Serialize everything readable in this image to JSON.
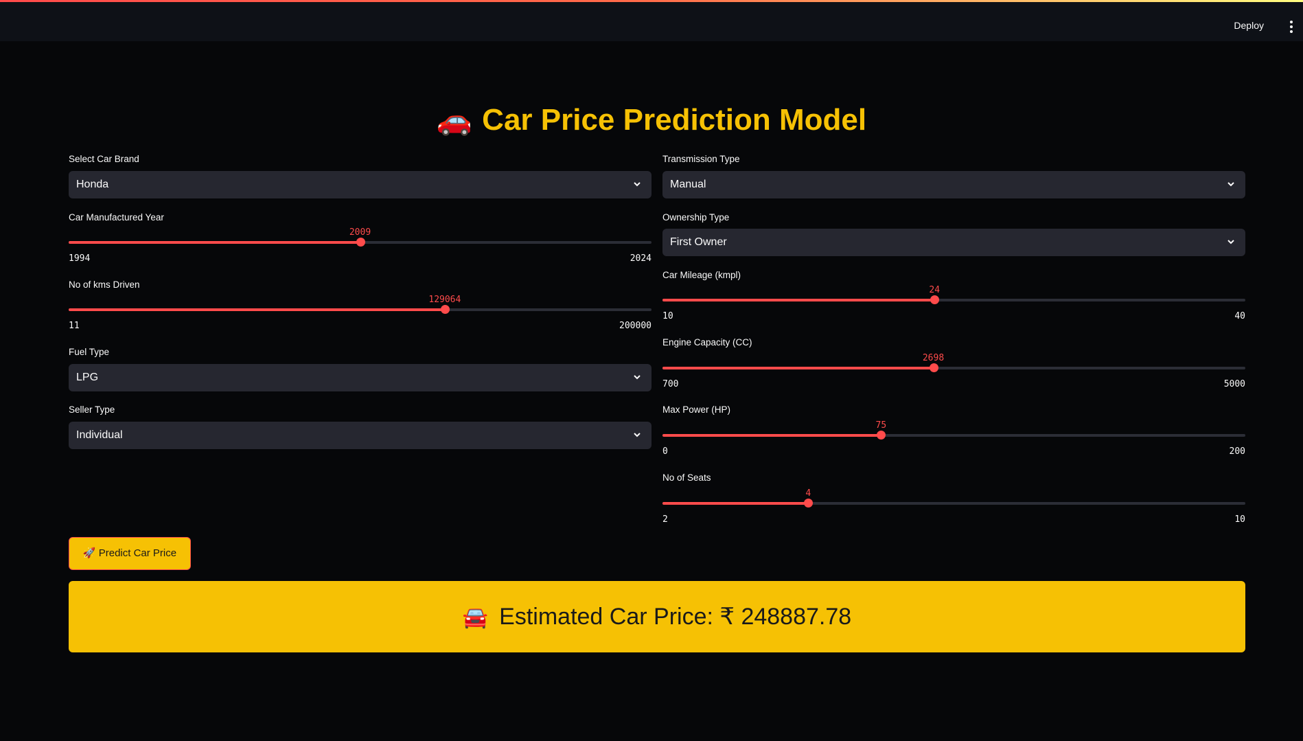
{
  "topbar": {
    "deploy_label": "Deploy",
    "menu_icon": "kebab-menu-icon"
  },
  "title": {
    "emoji": "🚗",
    "text": "Car Price Prediction Model"
  },
  "left": {
    "brand": {
      "label": "Select Car Brand",
      "value": "Honda"
    },
    "year": {
      "label": "Car Manufactured Year",
      "min": "1994",
      "max": "2024",
      "value": "2009",
      "fraction": 0.5
    },
    "kms": {
      "label": "No of kms Driven",
      "min": "11",
      "max": "200000",
      "value": "129064",
      "fraction": 0.6453
    },
    "fuel": {
      "label": "Fuel Type",
      "value": "LPG"
    },
    "seller": {
      "label": "Seller Type",
      "value": "Individual"
    }
  },
  "right": {
    "transmission": {
      "label": "Transmission Type",
      "value": "Manual"
    },
    "ownership": {
      "label": "Ownership Type",
      "value": "First Owner"
    },
    "mileage": {
      "label": "Car Mileage (kmpl)",
      "min": "10",
      "max": "40",
      "value": "24",
      "fraction": 0.4667
    },
    "engine": {
      "label": "Engine Capacity (CC)",
      "min": "700",
      "max": "5000",
      "value": "2698",
      "fraction": 0.4647
    },
    "power": {
      "label": "Max Power (HP)",
      "min": "0",
      "max": "200",
      "value": "75",
      "fraction": 0.375
    },
    "seats": {
      "label": "No of Seats",
      "min": "2",
      "max": "10",
      "value": "4",
      "fraction": 0.25
    }
  },
  "predict_button": {
    "emoji": "🚀",
    "label": "Predict Car Price"
  },
  "result": {
    "emoji": "🚘",
    "text": "Estimated Car Price: ₹ 248887.78"
  },
  "colors": {
    "accent": "#ff4b4b",
    "brand_yellow": "#f6c104",
    "background": "#060709",
    "input_bg": "#262730"
  }
}
